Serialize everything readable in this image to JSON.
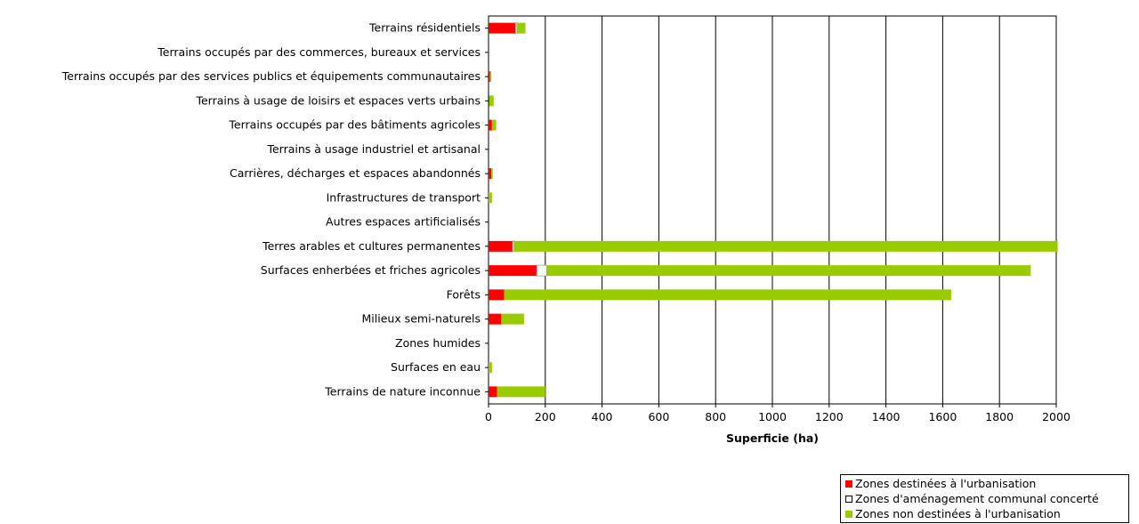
{
  "chart_data": {
    "type": "bar",
    "orientation": "horizontal",
    "stacked": true,
    "categories": [
      "Terrains résidentiels",
      "Terrains occupés par des commerces, bureaux et services",
      "Terrains occupés par des services publics et équipements communautaires",
      "Terrains à usage de loisirs et espaces verts urbains",
      "Terrains occupés par des bâtiments agricoles",
      "Terrains à usage industriel et artisanal",
      "Carrières, décharges et espaces abandonnés",
      "Infrastructures de transport",
      "Autres espaces artificialisés",
      "Terres arables et cultures permanentes",
      "Surfaces enherbées et friches agricoles",
      "Forêts",
      "Milieux semi-naturels",
      "Zones humides",
      "Surfaces en eau",
      "Terrains de nature inconnue"
    ],
    "series": [
      {
        "name": "Zones destinées à l'urbanisation",
        "color": "#ff0000",
        "values": [
          95,
          0,
          5,
          3,
          12,
          0,
          10,
          0,
          0,
          85,
          170,
          55,
          45,
          0,
          0,
          30
        ]
      },
      {
        "name": "Zones d'aménagement communal concerté",
        "color": "#ffffff",
        "values": [
          5,
          0,
          0,
          0,
          0,
          0,
          0,
          0,
          0,
          5,
          35,
          0,
          0,
          0,
          0,
          0
        ]
      },
      {
        "name": "Zones non destinées à l'urbanisation",
        "color": "#99cc00",
        "values": [
          30,
          0,
          5,
          15,
          15,
          0,
          5,
          12,
          0,
          1915,
          1705,
          1575,
          80,
          0,
          12,
          170
        ]
      }
    ],
    "xlabel": "Superficie (ha)",
    "xlim": [
      0,
      2000
    ],
    "xticks": [
      "0",
      "200",
      "400",
      "600",
      "800",
      "1000",
      "1200",
      "1400",
      "1600",
      "1800",
      "2000"
    ],
    "grid": "vertical gridlines",
    "legend_position": "bottom-right"
  }
}
